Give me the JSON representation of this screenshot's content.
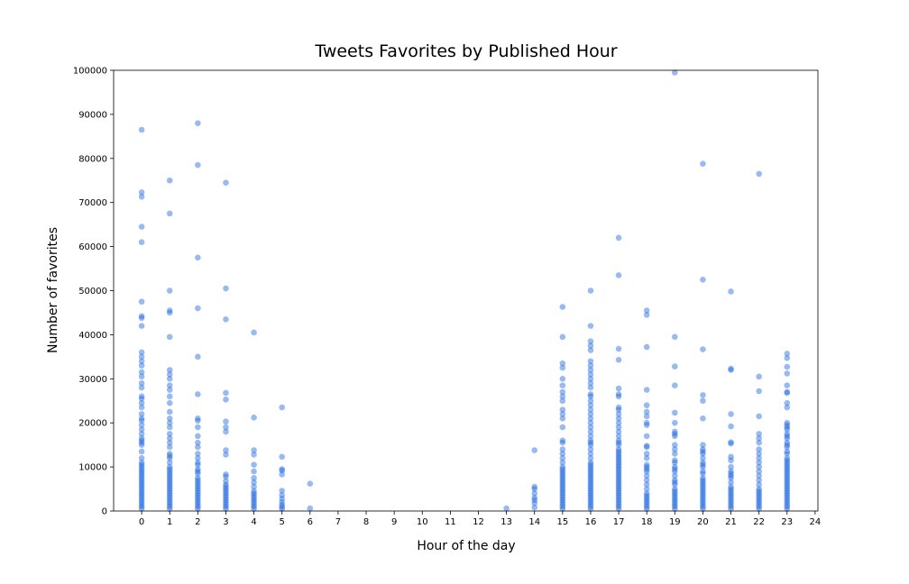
{
  "chart_data": {
    "type": "scatter",
    "title": "Tweets Favorites by Published Hour",
    "xlabel": "Hour of the day",
    "ylabel": "Number of favorites",
    "xlim": [
      -1,
      24.1
    ],
    "ylim": [
      0,
      100000
    ],
    "xticks": [
      0,
      1,
      2,
      3,
      4,
      5,
      6,
      7,
      8,
      9,
      10,
      11,
      12,
      13,
      14,
      15,
      16,
      17,
      18,
      19,
      20,
      21,
      22,
      23,
      24
    ],
    "yticks": [
      0,
      10000,
      20000,
      30000,
      40000,
      50000,
      60000,
      70000,
      80000,
      90000,
      100000
    ],
    "grid": false,
    "legend": "none",
    "point_color": "#1a66e0",
    "point_opacity": 0.45,
    "series": [
      {
        "x": 0,
        "y": [
          86500,
          72300,
          71300,
          64500,
          61000,
          47500,
          44200,
          43800,
          42000,
          36000,
          35000,
          34000,
          33000,
          31500,
          30500,
          29000,
          28000,
          26000,
          25500,
          24500,
          23500,
          22000,
          21000,
          20500,
          19500,
          18500,
          17500,
          16500,
          16000,
          15500,
          15000,
          13500,
          12000,
          11000,
          10500,
          10000,
          9500,
          9000,
          8500,
          8000,
          7500,
          7000,
          6500,
          6000,
          5500,
          5000,
          4500,
          4000,
          3500,
          3000,
          2500,
          2000,
          1500,
          1000,
          500
        ]
      },
      {
        "x": 1,
        "y": [
          75000,
          67500,
          50000,
          45500,
          45000,
          39500,
          32000,
          31000,
          30000,
          28500,
          27500,
          26000,
          24500,
          22500,
          21000,
          20000,
          19000,
          17500,
          16500,
          15500,
          14500,
          13000,
          12500,
          12000,
          11000,
          10000,
          9500,
          9000,
          8500,
          8000,
          7500,
          7000,
          6500,
          6000,
          5500,
          5000,
          4500,
          4000,
          3500,
          3000,
          2500,
          2000,
          1500,
          1000,
          500
        ]
      },
      {
        "x": 2,
        "y": [
          88000,
          78500,
          57500,
          46000,
          35000,
          26500,
          21000,
          20500,
          19000,
          17000,
          15500,
          14500,
          13000,
          12000,
          11000,
          10500,
          9500,
          9000,
          8500,
          7500,
          7000,
          6500,
          6000,
          5500,
          5000,
          4500,
          4000,
          3500,
          3000,
          2500,
          2000,
          1500,
          1000,
          500
        ]
      },
      {
        "x": 3,
        "y": [
          74500,
          50500,
          43500,
          26800,
          25300,
          20300,
          19000,
          18000,
          13800,
          12800,
          8300,
          7800,
          6800,
          6000,
          5500,
          5000,
          4500,
          4000,
          3500,
          3000,
          2500,
          2000,
          1500,
          1000,
          500
        ]
      },
      {
        "x": 4,
        "y": [
          40500,
          21200,
          13800,
          12800,
          10500,
          9000,
          7500,
          6500,
          5500,
          4500,
          4000,
          3500,
          3000,
          2500,
          2000,
          1500,
          1000,
          500
        ]
      },
      {
        "x": 5,
        "y": [
          23500,
          12300,
          9500,
          9200,
          8300,
          4600,
          3600,
          2800,
          2000,
          1400,
          900,
          500
        ]
      },
      {
        "x": 6,
        "y": [
          6200,
          600
        ]
      },
      {
        "x": 13,
        "y": [
          600
        ]
      },
      {
        "x": 14,
        "y": [
          13800,
          5500,
          5000,
          4000,
          3000,
          2500,
          1800,
          800
        ]
      },
      {
        "x": 15,
        "y": [
          46300,
          39500,
          33500,
          32500,
          30000,
          28500,
          27000,
          26000,
          25000,
          23000,
          22000,
          21000,
          19000,
          16000,
          15500,
          14000,
          13000,
          12000,
          11000,
          10000,
          9500,
          9000,
          8500,
          8000,
          7500,
          7000,
          6500,
          6000,
          5500,
          5000,
          4500,
          4000,
          3500,
          3000,
          2500,
          2000,
          1500,
          1000,
          500
        ]
      },
      {
        "x": 16,
        "y": [
          50000,
          42000,
          38500,
          37500,
          36500,
          34000,
          33000,
          32000,
          31000,
          30000,
          29000,
          28000,
          26500,
          26000,
          25000,
          24000,
          23000,
          22000,
          21000,
          20000,
          19000,
          18000,
          17000,
          16000,
          15500,
          15000,
          14000,
          13000,
          12000,
          11000,
          10500,
          10000,
          9500,
          9000,
          8500,
          8000,
          7500,
          7000,
          6500,
          6000,
          5500,
          5000,
          4500,
          4000,
          3500,
          3000,
          2500,
          2000,
          1500,
          1000,
          500
        ]
      },
      {
        "x": 17,
        "y": [
          62000,
          53500,
          36800,
          34300,
          27800,
          26500,
          26000,
          23500,
          23000,
          22000,
          21000,
          20000,
          19000,
          18000,
          17000,
          16000,
          15500,
          15000,
          14000,
          13500,
          13000,
          12500,
          12000,
          11500,
          11000,
          10500,
          10000,
          9500,
          9000,
          8500,
          8000,
          7500,
          7000,
          6500,
          6000,
          5500,
          5000,
          4500,
          4000,
          3500,
          3000,
          2500,
          2000,
          1500,
          1000,
          500
        ]
      },
      {
        "x": 18,
        "y": [
          45500,
          44500,
          37200,
          27500,
          24000,
          22500,
          21500,
          20000,
          19500,
          17000,
          14800,
          14500,
          13000,
          12000,
          10500,
          10000,
          9500,
          9000,
          8000,
          7000,
          6000,
          5000,
          4000,
          3500,
          3000,
          2500,
          2000,
          1500,
          1000,
          500
        ]
      },
      {
        "x": 19,
        "y": [
          99500,
          39500,
          32800,
          28500,
          22300,
          20000,
          18000,
          17500,
          17000,
          15000,
          14000,
          13000,
          11500,
          11000,
          10000,
          9500,
          9000,
          8000,
          7000,
          6500,
          6000,
          5000,
          4500,
          4000,
          3500,
          3000,
          2500,
          2000,
          1500,
          1000,
          500
        ]
      },
      {
        "x": 20,
        "y": [
          78800,
          52500,
          36700,
          26300,
          25000,
          21000,
          15000,
          14000,
          13500,
          13000,
          12000,
          11000,
          10500,
          10000,
          9000,
          8500,
          7500,
          7000,
          6500,
          6000,
          5500,
          5000,
          4500,
          4000,
          3500,
          3000,
          2500,
          2000,
          1500,
          1000,
          500
        ]
      },
      {
        "x": 21,
        "y": [
          49800,
          32300,
          32000,
          22000,
          19200,
          15600,
          15300,
          12300,
          11500,
          10000,
          9000,
          8500,
          8000,
          7500,
          6500,
          5500,
          5000,
          4500,
          4000,
          3500,
          3000,
          2500,
          2000,
          1500,
          1000,
          500
        ]
      },
      {
        "x": 22,
        "y": [
          76500,
          30500,
          27200,
          21500,
          17500,
          16500,
          15500,
          14000,
          13000,
          12000,
          11000,
          10000,
          9000,
          8000,
          7000,
          6000,
          5000,
          4500,
          4000,
          3500,
          3000,
          2500,
          2000,
          1500,
          1000,
          500
        ]
      },
      {
        "x": 23,
        "y": [
          35700,
          34700,
          32700,
          31200,
          28500,
          27000,
          26800,
          24500,
          23500,
          20000,
          19500,
          19000,
          18500,
          17500,
          17000,
          16500,
          15500,
          15000,
          14500,
          13500,
          13000,
          12000,
          11500,
          11000,
          10500,
          10000,
          9500,
          9000,
          8500,
          8000,
          7500,
          7000,
          6500,
          6000,
          5500,
          5000,
          4500,
          4000,
          3500,
          3000,
          2500,
          2000,
          1500,
          1000,
          500
        ]
      }
    ]
  }
}
